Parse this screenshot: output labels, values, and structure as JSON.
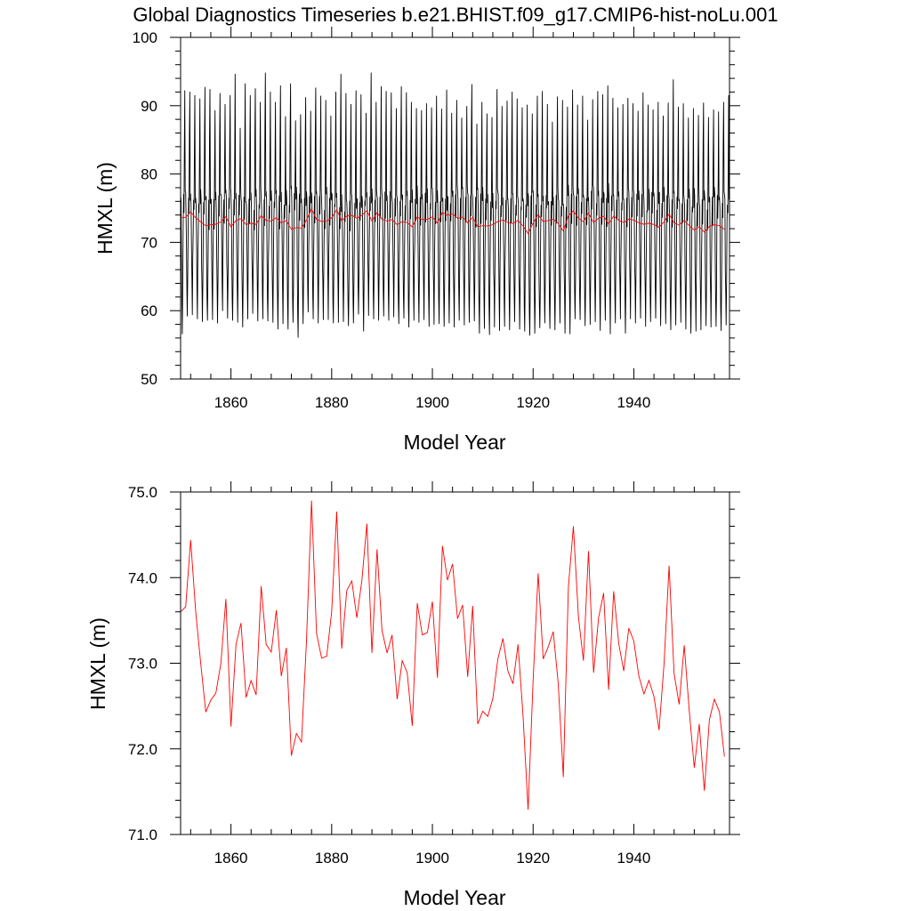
{
  "title": "Global Diagnostics Timeseries b.e21.BHIST.f09_g17.CMIP6-hist-noLu.001",
  "colors": {
    "monthly": "#000000",
    "annual": "#ff0000",
    "frame": "#000000",
    "background": "#ffffff"
  },
  "chart_data": [
    {
      "type": "line",
      "xlabel": "Model Year",
      "ylabel": "HMXL (m)",
      "xlim": [
        1850,
        1959
      ],
      "ylim": [
        50,
        100
      ],
      "x_ticks": [
        "1860",
        "1880",
        "1900",
        "1920",
        "1940"
      ],
      "y_ticks": [
        "50",
        "60",
        "70",
        "80",
        "90",
        "100"
      ],
      "grid": false,
      "series": [
        {
          "name": "",
          "color": "#000000",
          "resolution": "monthly",
          "x_start": 1850,
          "values_per_year": 12,
          "annual_max": [
            92.2,
            92.0,
            91.5,
            91.0,
            92.7,
            92.4,
            89.3,
            91.8,
            90.2,
            91.5,
            94.6,
            86.7,
            93.2,
            91.5,
            92.5,
            90.5,
            94.8,
            92.0,
            90.5,
            92.9,
            88.4,
            93.2,
            87.8,
            88.7,
            91.2,
            89.2,
            92.6,
            91.4,
            90.8,
            88.5,
            92.0,
            94.6,
            91.8,
            90.2,
            92.2,
            91.6,
            88.9,
            94.8,
            90.5,
            92.8,
            92.1,
            91.9,
            89.6,
            92.8,
            91.9,
            90.5,
            89.6,
            89.3,
            90.3,
            89.7,
            91.4,
            89.5,
            92.3,
            88.9,
            90.8,
            88.2,
            89.9,
            93.1,
            87.3,
            90.5,
            88.8,
            88.3,
            92.4,
            89.9,
            90.7,
            92.0,
            91.0,
            89.7,
            90.1,
            88.8,
            91.4,
            92.1,
            90.2,
            87.6,
            91.3,
            90.8,
            89.8,
            92.3,
            90.1,
            91.4,
            87.9,
            90.9,
            92.1,
            91.6,
            92.9,
            91.1,
            89.7,
            90.2,
            91.1,
            90.3,
            89.2,
            91.9,
            90.1,
            89.4,
            90.5,
            88.5,
            90.4,
            93.8,
            89.8,
            90.3,
            88.2,
            89.6,
            88.6,
            90.4,
            88.3,
            89.4,
            89.1,
            90.5,
            91.5
          ],
          "annual_min": [
            56.6,
            59.2,
            59.4,
            58.8,
            58.4,
            58.6,
            58.7,
            58.2,
            60.0,
            58.9,
            58.6,
            58.3,
            57.6,
            58.8,
            59.6,
            58.5,
            58.8,
            58.5,
            58.3,
            57.3,
            58.1,
            57.3,
            58.3,
            56.1,
            58.1,
            59.8,
            58.8,
            58.2,
            58.7,
            58.7,
            58.2,
            58.3,
            58.4,
            57.8,
            58.2,
            59.5,
            57.0,
            59.3,
            58.8,
            58.6,
            59.2,
            58.6,
            59.1,
            58.1,
            58.9,
            57.6,
            58.6,
            58.3,
            58.7,
            57.7,
            58.0,
            58.1,
            57.7,
            58.2,
            57.6,
            58.6,
            57.9,
            58.3,
            58.5,
            56.7,
            57.4,
            56.5,
            57.6,
            57.1,
            57.7,
            57.2,
            58.4,
            57.3,
            57.0,
            56.4,
            56.7,
            57.5,
            58.2,
            57.4,
            57.2,
            58.2,
            56.7,
            56.6,
            58.8,
            58.7,
            57.8,
            58.0,
            58.4,
            57.1,
            58.6,
            56.6,
            58.2,
            58.8,
            56.7,
            58.8,
            58.2,
            58.9,
            57.7,
            58.4,
            58.9,
            57.8,
            58.1,
            57.2,
            57.9,
            58.3,
            57.3,
            56.7,
            57.0,
            57.2,
            57.8,
            57.6,
            57.7,
            57.1,
            57.9
          ]
        },
        {
          "name": "",
          "color": "#ff0000",
          "resolution": "annual",
          "x_start": 1850,
          "values": [
            73.6,
            73.66,
            74.44,
            73.6,
            73.0,
            72.43,
            72.57,
            72.65,
            73.0,
            73.75,
            72.26,
            73.22,
            73.47,
            72.6,
            72.8,
            72.63,
            73.9,
            73.22,
            73.13,
            73.62,
            72.85,
            73.18,
            71.92,
            72.18,
            72.08,
            73.26,
            74.9,
            73.35,
            73.06,
            73.08,
            73.6,
            74.77,
            73.17,
            73.85,
            73.96,
            73.53,
            73.97,
            74.63,
            73.12,
            74.33,
            73.38,
            73.12,
            73.33,
            72.58,
            73.03,
            72.89,
            72.27,
            73.7,
            73.33,
            73.36,
            73.72,
            72.83,
            74.37,
            73.97,
            74.16,
            73.52,
            73.68,
            72.84,
            73.67,
            72.29,
            72.44,
            72.38,
            72.59,
            73.05,
            73.29,
            72.91,
            72.76,
            73.22,
            72.39,
            71.29,
            72.79,
            74.05,
            73.05,
            73.19,
            73.37,
            72.76,
            71.67,
            73.89,
            74.6,
            73.54,
            73.03,
            74.31,
            72.89,
            73.53,
            73.82,
            72.69,
            73.84,
            73.23,
            72.91,
            73.41,
            73.26,
            72.85,
            72.64,
            72.8,
            72.61,
            72.22,
            72.99,
            74.14,
            72.88,
            72.52,
            73.21,
            72.45,
            71.78,
            72.29,
            71.51,
            72.34,
            72.58,
            72.43,
            71.91
          ]
        }
      ]
    },
    {
      "type": "line",
      "xlabel": "Model Year",
      "ylabel": "HMXL (m)",
      "xlim": [
        1850,
        1959
      ],
      "ylim": [
        71,
        75
      ],
      "x_ticks": [
        "1860",
        "1880",
        "1900",
        "1920",
        "1940"
      ],
      "y_ticks": [
        "71.0",
        "72.0",
        "73.0",
        "74.0",
        "75.0"
      ],
      "grid": false,
      "series": [
        {
          "name": "",
          "color": "#ff0000",
          "resolution": "annual",
          "x_start": 1850,
          "values": [
            73.6,
            73.66,
            74.44,
            73.6,
            73.0,
            72.43,
            72.57,
            72.65,
            73.0,
            73.75,
            72.26,
            73.22,
            73.47,
            72.6,
            72.8,
            72.63,
            73.9,
            73.22,
            73.13,
            73.62,
            72.85,
            73.18,
            71.92,
            72.18,
            72.08,
            73.26,
            74.9,
            73.35,
            73.06,
            73.08,
            73.6,
            74.77,
            73.17,
            73.85,
            73.96,
            73.53,
            73.97,
            74.63,
            73.12,
            74.33,
            73.38,
            73.12,
            73.33,
            72.58,
            73.03,
            72.89,
            72.27,
            73.7,
            73.33,
            73.36,
            73.72,
            72.83,
            74.37,
            73.97,
            74.16,
            73.52,
            73.68,
            72.84,
            73.67,
            72.29,
            72.44,
            72.38,
            72.59,
            73.05,
            73.29,
            72.91,
            72.76,
            73.22,
            72.39,
            71.29,
            72.79,
            74.05,
            73.05,
            73.19,
            73.37,
            72.76,
            71.67,
            73.89,
            74.6,
            73.54,
            73.03,
            74.31,
            72.89,
            73.53,
            73.82,
            72.69,
            73.84,
            73.23,
            72.91,
            73.41,
            73.26,
            72.85,
            72.64,
            72.8,
            72.61,
            72.22,
            72.99,
            74.14,
            72.88,
            72.52,
            73.21,
            72.45,
            71.78,
            72.29,
            71.51,
            72.34,
            72.58,
            72.43,
            71.91
          ]
        }
      ]
    }
  ]
}
